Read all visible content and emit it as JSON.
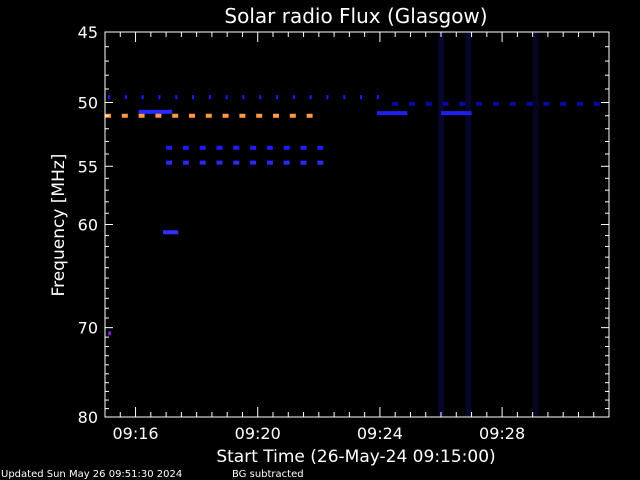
{
  "chart_data": {
    "type": "heatmap",
    "title": "Solar radio Flux (Glasgow)",
    "xlabel": "Start Time (26-May-24 09:15:00)",
    "ylabel": "Frequency [MHz]",
    "x_range_min": [
      15.0,
      31.5
    ],
    "y_range_mhz": [
      45,
      80
    ],
    "x_ticks": [
      {
        "label": "09:16",
        "min": 16
      },
      {
        "label": "09:20",
        "min": 20
      },
      {
        "label": "09:24",
        "min": 24
      },
      {
        "label": "09:28",
        "min": 28
      }
    ],
    "y_ticks": [
      45,
      50,
      55,
      60,
      70,
      80
    ],
    "grid": false,
    "emission_bands": [
      {
        "mhz": 49.6,
        "t0": 15.1,
        "t1": 24.3,
        "style": "dashed",
        "color": "#1a1aff"
      },
      {
        "mhz": 50.1,
        "t0": 24.4,
        "t1": 31.3,
        "style": "dashed",
        "color": "#0a0aa0"
      },
      {
        "mhz": 50.7,
        "t0": 16.1,
        "t1": 17.2,
        "style": "solid",
        "color": "#2a2aff"
      },
      {
        "mhz": 50.8,
        "t0": 23.9,
        "t1": 24.9,
        "style": "solid",
        "color": "#2020ee"
      },
      {
        "mhz": 50.8,
        "t0": 26.0,
        "t1": 27.0,
        "style": "solid",
        "color": "#2020ee"
      },
      {
        "mhz": 51.0,
        "t0": 15.0,
        "t1": 22.1,
        "style": "dashed",
        "color": "#ff9a4a"
      },
      {
        "mhz": 53.5,
        "t0": 17.0,
        "t1": 22.1,
        "style": "dashed",
        "color": "#1c1cff"
      },
      {
        "mhz": 54.7,
        "t0": 17.0,
        "t1": 22.1,
        "style": "dashed",
        "color": "#2a2aff"
      },
      {
        "mhz": 60.7,
        "t0": 16.9,
        "t1": 17.4,
        "style": "solid",
        "color": "#3030ff"
      },
      {
        "mhz": 70.6,
        "t0": 15.1,
        "t1": 15.2,
        "style": "solid",
        "color": "#7a20c0"
      }
    ],
    "background_columns": [
      {
        "t": 26.0,
        "color": "#06062a"
      },
      {
        "t": 26.9,
        "color": "#06062a"
      },
      {
        "t": 29.1,
        "color": "#050520"
      }
    ]
  },
  "footer": {
    "updated": "Updated Sun May 26 09:51:30 2024",
    "note": "BG subtracted"
  }
}
